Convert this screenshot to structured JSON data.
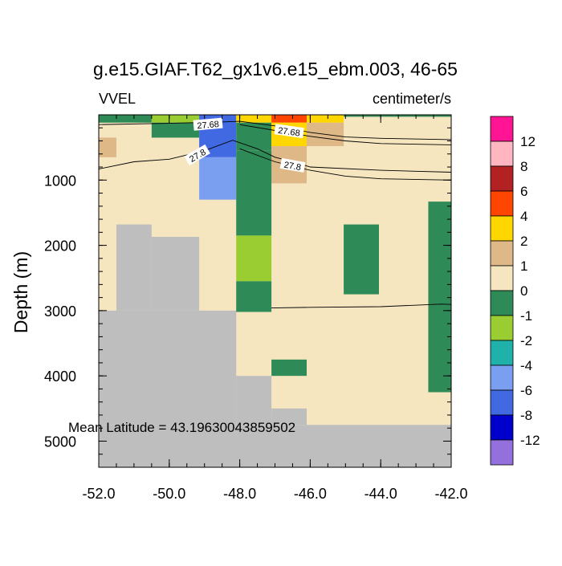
{
  "chart_data": {
    "type": "heatmap",
    "title": "g.e15.GIAF.T62_gx1v6.e15_ebm.003, 46-65",
    "left_string": "VVEL",
    "right_string": "centimeter/s",
    "xlabel": "",
    "ylabel": "Depth (m)",
    "xlim": [
      -52,
      -42
    ],
    "ylim": [
      5400,
      0
    ],
    "x_ticks": [
      -52,
      -50,
      -48,
      -46,
      -44,
      -42
    ],
    "x_tick_labels": [
      "-52.0",
      "-50.0",
      "-48.0",
      "-46.0",
      "-44.0",
      "-42.0"
    ],
    "y_ticks": [
      1000,
      2000,
      3000,
      4000,
      5000
    ],
    "y_tick_labels": [
      "1000",
      "2000",
      "3000",
      "4000",
      "5000"
    ],
    "annotation": "Mean Latitude = 43.19630043859502",
    "colorbar": {
      "labels": [
        "12",
        "8",
        "6",
        "4",
        "2",
        "1",
        "0",
        "-1",
        "-2",
        "-4",
        "-6",
        "-8",
        "-12"
      ],
      "colors": [
        "#ff1493",
        "#ffb6c1",
        "#b22222",
        "#ff4500",
        "#ffd700",
        "#deb887",
        "#f5e6c0",
        "#2e8b57",
        "#9acd32",
        "#20b2aa",
        "#7b9ff0",
        "#4169e1",
        "#0000cd",
        "#9370db"
      ]
    },
    "land_color": "#bebebe",
    "cells": [
      {
        "x0": -52,
        "x1": -42,
        "y0": 0,
        "y1": 4750,
        "c": "#f5e6c0"
      },
      {
        "x0": -52,
        "x1": -42,
        "y0": 4750,
        "y1": 5400,
        "c": "#bebebe"
      },
      {
        "x0": -52,
        "x1": -48.1,
        "y0": 3000,
        "y1": 4750,
        "c": "#bebebe"
      },
      {
        "x0": -48.1,
        "x1": -47.1,
        "y0": 4000,
        "y1": 4750,
        "c": "#bebebe"
      },
      {
        "x0": -47.1,
        "x1": -46.1,
        "y0": 4500,
        "y1": 4750,
        "c": "#bebebe"
      },
      {
        "x0": -51.5,
        "x1": -50.5,
        "y0": 1680,
        "y1": 3000,
        "c": "#bebebe"
      },
      {
        "x0": -50.5,
        "x1": -49.15,
        "y0": 1870,
        "y1": 3000,
        "c": "#bebebe"
      },
      {
        "x0": -52,
        "x1": -50.5,
        "y0": 0,
        "y1": 120,
        "c": "#2e8b57"
      },
      {
        "x0": -50.5,
        "x1": -49.15,
        "y0": 0,
        "y1": 120,
        "c": "#9acd32"
      },
      {
        "x0": -50.5,
        "x1": -49.15,
        "y0": 120,
        "y1": 350,
        "c": "#2e8b57"
      },
      {
        "x0": -52,
        "x1": -51.5,
        "y0": 350,
        "y1": 650,
        "c": "#deb887"
      },
      {
        "x0": -49.15,
        "x1": -48.1,
        "y0": 0,
        "y1": 650,
        "c": "#4169e1"
      },
      {
        "x0": -49.15,
        "x1": -48.1,
        "y0": 650,
        "y1": 1300,
        "c": "#7b9ff0"
      },
      {
        "x0": -48.1,
        "x1": -47.1,
        "y0": 0,
        "y1": 120,
        "c": "#ffd700"
      },
      {
        "x0": -48.1,
        "x1": -47.1,
        "y0": 120,
        "y1": 550,
        "c": "#2e8b57"
      },
      {
        "x0": -47.1,
        "x1": -46.1,
        "y0": 0,
        "y1": 120,
        "c": "#ff4500"
      },
      {
        "x0": -47.1,
        "x1": -46.1,
        "y0": 120,
        "y1": 480,
        "c": "#ffd700"
      },
      {
        "x0": -47.1,
        "x1": -46.1,
        "y0": 480,
        "y1": 1050,
        "c": "#deb887"
      },
      {
        "x0": -46.1,
        "x1": -45.05,
        "y0": 0,
        "y1": 120,
        "c": "#ffd700"
      },
      {
        "x0": -46.1,
        "x1": -45.05,
        "y0": 120,
        "y1": 480,
        "c": "#deb887"
      },
      {
        "x0": -45.05,
        "x1": -42,
        "y0": 0,
        "y1": 30,
        "c": "#2e8b57"
      },
      {
        "x0": -48.1,
        "x1": -47.1,
        "y0": 550,
        "y1": 1850,
        "c": "#2e8b57"
      },
      {
        "x0": -48.1,
        "x1": -47.1,
        "y0": 1850,
        "y1": 2550,
        "c": "#9acd32"
      },
      {
        "x0": -48.1,
        "x1": -47.1,
        "y0": 2550,
        "y1": 3020,
        "c": "#2e8b57"
      },
      {
        "x0": -47.1,
        "x1": -46.1,
        "y0": 3750,
        "y1": 4000,
        "c": "#2e8b57"
      },
      {
        "x0": -45.05,
        "x1": -44.05,
        "y0": 1680,
        "y1": 2750,
        "c": "#2e8b57"
      },
      {
        "x0": -42.65,
        "x1": -42,
        "y0": 1330,
        "y1": 4250,
        "c": "#2e8b57"
      }
    ],
    "contours": [
      {
        "label": "27.68",
        "label_at": [
          -48.9,
          150
        ],
        "points": [
          [
            -52,
            150
          ],
          [
            -50,
            130
          ],
          [
            -48.5,
            110
          ],
          [
            -48,
            100
          ],
          [
            -47,
            170
          ],
          [
            -46,
            270
          ],
          [
            -45,
            340
          ],
          [
            -44,
            360
          ],
          [
            -42,
            380
          ]
        ]
      },
      {
        "label": "27.68",
        "label_at": [
          -46.6,
          255
        ],
        "points": [
          [
            -48,
            150
          ],
          [
            -47,
            240
          ],
          [
            -46,
            330
          ],
          [
            -45,
            400
          ],
          [
            -44,
            440
          ],
          [
            -42,
            460
          ]
        ]
      },
      {
        "label": "27.8",
        "label_at": [
          -49.2,
          620
        ],
        "points": [
          [
            -52,
            830
          ],
          [
            -51,
            720
          ],
          [
            -50,
            680
          ],
          [
            -49,
            550
          ],
          [
            -48.2,
            390
          ],
          [
            -47.5,
            520
          ],
          [
            -47,
            650
          ],
          [
            -46.5,
            720
          ],
          [
            -46,
            800
          ],
          [
            -44,
            850
          ],
          [
            -42,
            880
          ]
        ]
      },
      {
        "label": "27.8",
        "label_at": [
          -46.5,
          780
        ],
        "points": [
          [
            -48,
            520
          ],
          [
            -47,
            720
          ],
          [
            -46,
            850
          ],
          [
            -45,
            940
          ],
          [
            -44,
            980
          ],
          [
            -42,
            1000
          ]
        ]
      },
      {
        "label": "",
        "label_at": null,
        "points": [
          [
            -47.1,
            2960
          ],
          [
            -46,
            2950
          ],
          [
            -44,
            2940
          ],
          [
            -42.3,
            2900
          ],
          [
            -42,
            2905
          ]
        ]
      }
    ]
  }
}
